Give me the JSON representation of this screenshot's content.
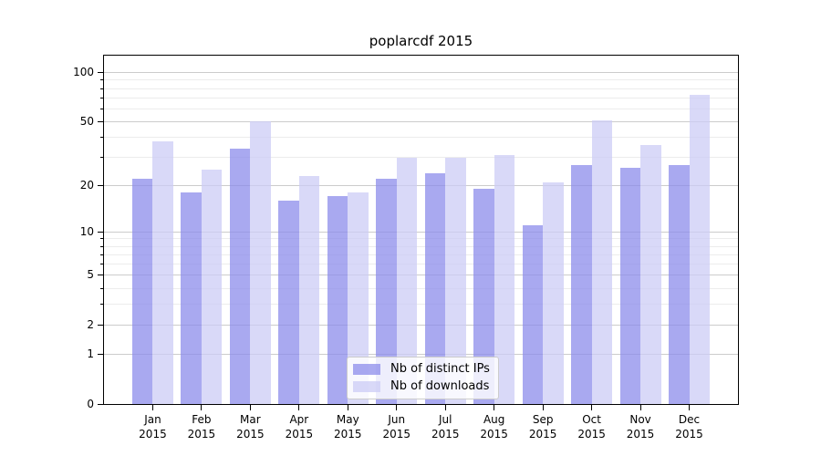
{
  "title": "poplarcdf 2015",
  "colors": {
    "grid_major": "#cccccc",
    "grid_minor": "#ececec",
    "axis": "#000000",
    "legend_border": "#cccccc",
    "legend_bg": "rgba(255,255,255,0.8)"
  },
  "legend": {
    "entries": [
      {
        "label": "Nb of distinct IPs",
        "color": "rgba(140,140,235,0.75)"
      },
      {
        "label": "Nb of downloads",
        "color": "rgba(204,204,245,0.75)"
      }
    ]
  },
  "chart_data": {
    "type": "bar",
    "title": "poplarcdf 2015",
    "categories": [
      "Jan",
      "Feb",
      "Mar",
      "Apr",
      "May",
      "Jun",
      "Jul",
      "Aug",
      "Sep",
      "Oct",
      "Nov",
      "Dec"
    ],
    "year_label": "2015",
    "series": [
      {
        "name": "Nb of distinct IPs",
        "color": "rgba(140,140,235,0.75)",
        "values": [
          22,
          18,
          34,
          16,
          17,
          22,
          24,
          19,
          11,
          27,
          26,
          27
        ]
      },
      {
        "name": "Nb of downloads",
        "color": "rgba(204,204,245,0.75)",
        "values": [
          38,
          25,
          50,
          23,
          18,
          30,
          30,
          31,
          21,
          51,
          36,
          73
        ]
      }
    ],
    "yscale": "log1p",
    "ylim": [
      0,
      127
    ],
    "yticks_major": [
      0,
      1,
      2,
      5,
      10,
      20,
      50,
      100
    ],
    "yticks_minor": [
      3,
      4,
      6,
      7,
      8,
      9,
      30,
      40,
      60,
      70,
      80,
      90
    ],
    "grid": true,
    "legend_position": "lower center"
  }
}
